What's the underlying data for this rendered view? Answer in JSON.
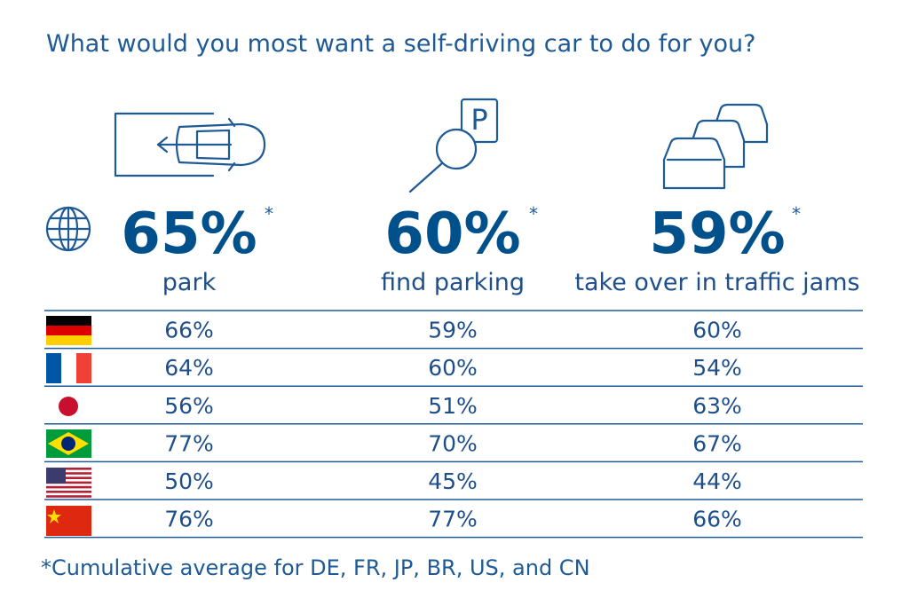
{
  "title": "What would you most want a self-driving car to do for you?",
  "parking_sign": "P",
  "headlines": [
    {
      "value": "65%",
      "note": "*",
      "label": "park"
    },
    {
      "value": "60%",
      "note": "*",
      "label": "find parking"
    },
    {
      "value": "59%",
      "note": "*",
      "label": "take over in traffic jams"
    }
  ],
  "table": {
    "rows": [
      [
        "66%",
        "59%",
        "60%"
      ],
      [
        "64%",
        "60%",
        "54%"
      ],
      [
        "56%",
        "51%",
        "63%"
      ],
      [
        "77%",
        "70%",
        "67%"
      ],
      [
        "50%",
        "45%",
        "44%"
      ],
      [
        "76%",
        "77%",
        "66%"
      ]
    ]
  },
  "footnote": "*Cumulative average for DE, FR, JP, BR, US, and CN"
}
